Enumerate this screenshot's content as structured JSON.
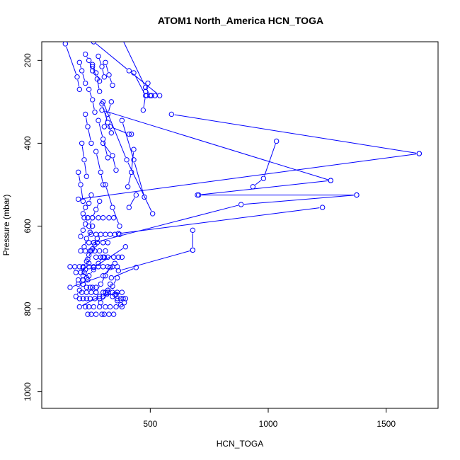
{
  "chart_data": {
    "type": "line",
    "title": "ATOM1 North_America HCN_TOGA",
    "xlabel": "HCN_TOGA",
    "ylabel": "Pressure (mbar)",
    "xlim": [
      40,
      1720
    ],
    "ylim": [
      1040,
      155
    ],
    "y_reversed": true,
    "x_ticks": [
      500,
      1000,
      1500
    ],
    "y_ticks": [
      200,
      400,
      600,
      800,
      1000
    ],
    "color": "#0000ff",
    "marker": "open-circle",
    "series": [
      {
        "x": [
          1035,
          980,
          935
        ],
        "y": [
          395,
          485,
          505
        ]
      },
      {
        "x": [
          1640,
          195
        ],
        "y": [
          425,
          535
        ]
      },
      {
        "x": [
          590,
          1640
        ],
        "y": [
          330,
          425
        ]
      },
      {
        "x": [
          1265,
          700
        ],
        "y": [
          490,
          525
        ]
      },
      {
        "x": [
          1375,
          705
        ],
        "y": [
          525,
          525
        ]
      },
      {
        "x": [
          1375,
          885,
          260
        ],
        "y": [
          525,
          548,
          640
        ]
      },
      {
        "x": [
          1230,
          365
        ],
        "y": [
          555,
          618
        ]
      },
      {
        "x": [
          680,
          680
        ],
        "y": [
          610,
          658
        ]
      },
      {
        "x": [
          680,
          365
        ],
        "y": [
          658,
          708
        ]
      },
      {
        "x": [
          440,
          335
        ],
        "y": [
          700,
          725
        ]
      },
      {
        "x": [
          295,
          1265
        ],
        "y": [
          320,
          490
        ]
      },
      {
        "x": [
          540,
          410,
          260
        ],
        "y": [
          285,
          225,
          155
        ]
      },
      {
        "x": [
          470,
          480,
          430
        ],
        "y": [
          320,
          285,
          230
        ]
      },
      {
        "x": [
          485,
          480,
          490
        ],
        "y": [
          285,
          275,
          255
        ]
      },
      {
        "x": [
          505,
          520
        ],
        "y": [
          285,
          285
        ]
      },
      {
        "x": [
          500,
          480,
          370
        ],
        "y": [
          285,
          265,
          135
        ]
      },
      {
        "x": [
          510,
          400,
          300
        ],
        "y": [
          570,
          440,
          300
        ]
      },
      {
        "x": [
          475,
          430,
          380
        ],
        "y": [
          530,
          440,
          345
        ]
      },
      {
        "x": [
          420,
          410,
          330
        ],
        "y": [
          378,
          378,
          360
        ]
      },
      {
        "x": [
          405,
          420,
          430
        ],
        "y": [
          505,
          470,
          415
        ]
      },
      {
        "x": [
          410,
          440
        ],
        "y": [
          555,
          525
        ]
      },
      {
        "x": [
          395,
          260
        ],
        "y": [
          650,
          700
        ]
      },
      {
        "x": [
          370,
          340,
          310
        ],
        "y": [
          600,
          555,
          500
        ]
      },
      {
        "x": [
          355,
          340,
          300
        ],
        "y": [
          465,
          430,
          400
        ]
      },
      {
        "x": [
          335,
          320,
          295
        ],
        "y": [
          375,
          350,
          305
        ]
      },
      {
        "x": [
          320,
          300,
          280
        ],
        "y": [
          435,
          390,
          345
        ]
      },
      {
        "x": [
          300,
          290,
          270
        ],
        "y": [
          500,
          470,
          420
        ]
      },
      {
        "x": [
          305,
          320,
          335
        ],
        "y": [
          360,
          330,
          300
        ]
      },
      {
        "x": [
          285,
          275,
          255
        ],
        "y": [
          275,
          245,
          215
        ]
      },
      {
        "x": [
          265,
          255,
          240
        ],
        "y": [
          325,
          295,
          270
        ]
      },
      {
        "x": [
          250,
          235,
          225
        ],
        "y": [
          400,
          360,
          330
        ]
      },
      {
        "x": [
          230,
          220,
          210
        ],
        "y": [
          480,
          440,
          400
        ]
      },
      {
        "x": [
          215,
          205,
          195
        ],
        "y": [
          540,
          500,
          470
        ]
      },
      {
        "x": [
          140,
          190,
          200
        ],
        "y": [
          160,
          240,
          270
        ]
      },
      {
        "x": [
          200,
          210,
          225
        ],
        "y": [
          205,
          225,
          255
        ]
      },
      {
        "x": [
          225,
          240,
          255
        ],
        "y": [
          185,
          200,
          225
        ]
      },
      {
        "x": [
          255,
          270,
          285
        ],
        "y": [
          210,
          230,
          250
        ]
      },
      {
        "x": [
          280,
          295,
          305
        ],
        "y": [
          190,
          215,
          240
        ]
      },
      {
        "x": [
          310,
          325,
          340
        ],
        "y": [
          205,
          235,
          260
        ]
      },
      {
        "x": [
          215,
          225,
          240,
          250
        ],
        "y": [
          570,
          555,
          545,
          525
        ]
      },
      {
        "x": [
          240,
          255,
          270,
          285
        ],
        "y": [
          600,
          580,
          560,
          540
        ]
      },
      {
        "x": [
          205,
          215,
          225,
          235
        ],
        "y": [
          625,
          610,
          595,
          580
        ]
      },
      {
        "x": [
          220,
          230,
          245,
          255
        ],
        "y": [
          650,
          630,
          615,
          600
        ]
      },
      {
        "x": [
          235,
          250,
          265,
          275
        ],
        "y": [
          680,
          660,
          645,
          630
        ]
      },
      {
        "x": [
          215,
          230,
          240,
          255
        ],
        "y": [
          700,
          685,
          670,
          655
        ]
      },
      {
        "x": [
          195,
          215,
          225,
          240
        ],
        "y": [
          740,
          720,
          705,
          690
        ]
      },
      {
        "x": [
          185,
          200,
          215,
          230
        ],
        "y": [
          770,
          755,
          740,
          725
        ]
      },
      {
        "x": [
          240,
          260,
          280,
          300
        ],
        "y": [
          720,
          705,
          690,
          675
        ]
      },
      {
        "x": [
          270,
          290,
          310,
          330
        ],
        "y": [
          760,
          740,
          720,
          700
        ]
      },
      {
        "x": [
          290,
          315,
          340,
          360
        ],
        "y": [
          785,
          765,
          745,
          725
        ]
      },
      {
        "x": [
          240,
          260,
          275,
          300,
          320
        ],
        "y": [
          640,
          640,
          640,
          640,
          640
        ]
      },
      {
        "x": [
          160,
          300,
          350
        ],
        "y": [
          748,
          720,
          690
        ]
      },
      {
        "x": [
          200,
          285,
          380
        ],
        "y": [
          795,
          770,
          760
        ]
      },
      {
        "x": [
          300,
          310,
          320,
          330
        ],
        "y": [
          770,
          760,
          755,
          740
        ]
      },
      {
        "x": [
          340,
          350,
          360,
          375
        ],
        "y": [
          770,
          765,
          780,
          790
        ]
      }
    ],
    "scatter_points": {
      "x": [
        235,
        250,
        270,
        295,
        305,
        325,
        345,
        225,
        240,
        260,
        285,
        310,
        330,
        355,
        380,
        390,
        200,
        215,
        230,
        245,
        265,
        285,
        375,
        385,
        395,
        210,
        230,
        250,
        270,
        300,
        320,
        340,
        360,
        230,
        245,
        255,
        270,
        195,
        215,
        235,
        185,
        205,
        220,
        160,
        180,
        200,
        215,
        240,
        260,
        280,
        300,
        320,
        340,
        360,
        270,
        290,
        305,
        320,
        345,
        365,
        380,
        205,
        225,
        245,
        265,
        285,
        310,
        250,
        270,
        290,
        310,
        330,
        350,
        370,
        220,
        235,
        255,
        280,
        300,
        325,
        345,
        355,
        360
      ],
      "y": [
        813,
        813,
        813,
        813,
        813,
        813,
        813,
        795,
        795,
        795,
        795,
        795,
        795,
        795,
        795,
        785,
        775,
        775,
        775,
        775,
        775,
        775,
        775,
        775,
        775,
        760,
        760,
        760,
        760,
        760,
        760,
        760,
        760,
        748,
        748,
        748,
        748,
        730,
        730,
        730,
        712,
        712,
        712,
        698,
        698,
        698,
        698,
        698,
        698,
        698,
        698,
        698,
        698,
        698,
        675,
        675,
        675,
        675,
        675,
        675,
        675,
        660,
        660,
        660,
        660,
        660,
        660,
        620,
        620,
        620,
        620,
        620,
        620,
        620,
        580,
        580,
        580,
        580,
        580,
        580,
        580,
        765,
        775
      ]
    }
  }
}
